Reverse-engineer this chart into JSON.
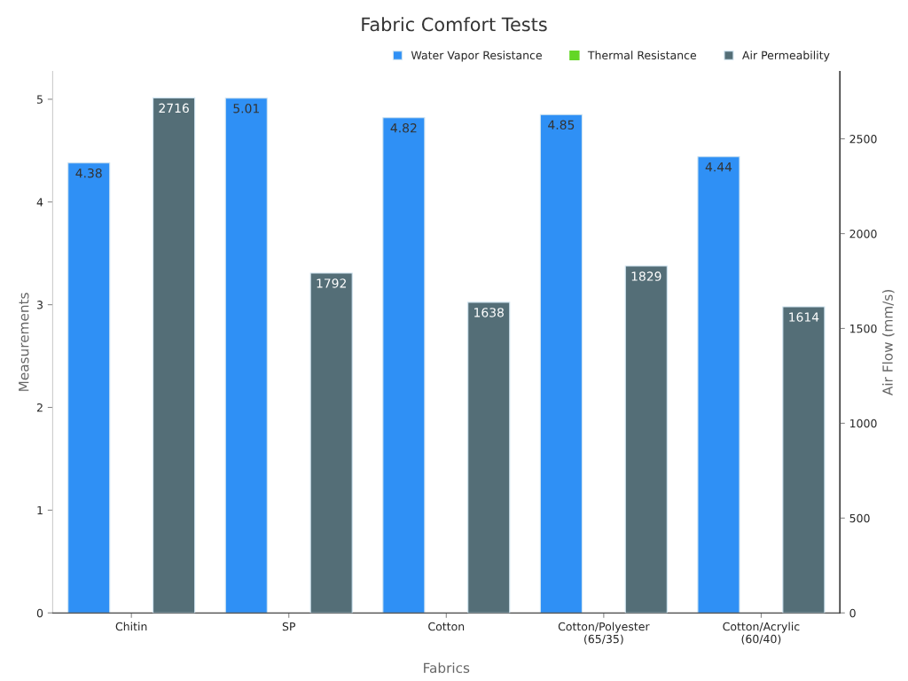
{
  "chart_data": {
    "type": "bar",
    "title": "Fabric Comfort Tests",
    "xlabel": "Fabrics",
    "ylabel": "Measurements",
    "y2label": "Air Flow (mm/s)",
    "categories": [
      "Chitin",
      "SP",
      "Cotton",
      "Cotton/Polyester\n(65/35)",
      "Cotton/Acrylic\n(60/40)"
    ],
    "series": [
      {
        "name": "Water Vapor Resistance",
        "color": "#2f90f5",
        "values": [
          4.38,
          5.01,
          4.82,
          4.85,
          4.44
        ]
      },
      {
        "name": "Thermal Resistance",
        "color": "#63d626",
        "values": [
          null,
          null,
          null,
          null,
          null
        ]
      },
      {
        "name": "Air Permeability",
        "color": "#546e77",
        "axis": "y2",
        "values": [
          2716,
          1792,
          1638,
          1829,
          1614
        ]
      }
    ],
    "ylim": [
      0,
      5.27
    ],
    "yticks": [
      0,
      1,
      2,
      3,
      4,
      5
    ],
    "y2lim": [
      0,
      2855
    ],
    "y2ticks": [
      0,
      500,
      1000,
      1500,
      2000,
      2500
    ],
    "data_labels": true,
    "legend": "top right",
    "grid": false
  }
}
